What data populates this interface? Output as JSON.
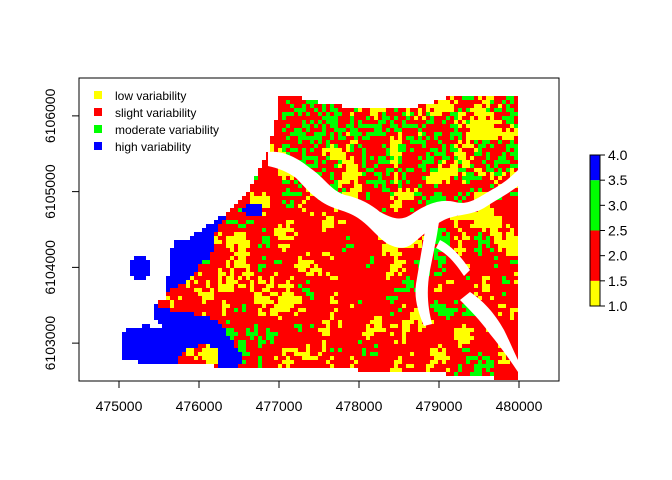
{
  "chart_data": {
    "type": "raster",
    "title": "",
    "xlabel": "",
    "ylabel": "",
    "xlim": [
      474500,
      480500
    ],
    "ylim": [
      6102500,
      6106500
    ],
    "x_ticks": [
      475000,
      476000,
      477000,
      478000,
      479000,
      480000
    ],
    "y_ticks": [
      6103000,
      6104000,
      6105000,
      6106000
    ],
    "x_tick_labels": [
      "475000",
      "476000",
      "477000",
      "478000",
      "479000",
      "480000"
    ],
    "y_tick_labels": [
      "6103000",
      "6104000",
      "6105000",
      "6106000"
    ],
    "legend": {
      "placement": "top-left",
      "entries": [
        {
          "label": "low variability",
          "color": "#ffff00"
        },
        {
          "label": "slight variability",
          "color": "#ff0000"
        },
        {
          "label": "moderate variability",
          "color": "#00ff00"
        },
        {
          "label": "high variability",
          "color": "#0000ff"
        }
      ]
    },
    "colorbar": {
      "range": [
        1.0,
        4.0
      ],
      "tick_labels": [
        "1.0",
        "1.5",
        "2.0",
        "2.5",
        "3.0",
        "3.5",
        "4.0"
      ],
      "classes": [
        {
          "from": 1.0,
          "to": 1.5,
          "color": "#ffff00"
        },
        {
          "from": 1.5,
          "to": 2.5,
          "color": "#ff0000"
        },
        {
          "from": 2.5,
          "to": 3.5,
          "color": "#00ff00"
        },
        {
          "from": 3.5,
          "to": 4.0,
          "color": "#0000ff"
        }
      ]
    },
    "classes": [
      {
        "value": 1,
        "name": "low variability",
        "color": "#ffff00"
      },
      {
        "value": 2,
        "name": "slight variability",
        "color": "#ff0000"
      },
      {
        "value": 3,
        "name": "moderate variability",
        "color": "#00ff00"
      },
      {
        "value": 4,
        "name": "high variability",
        "color": "#0000ff"
      }
    ],
    "grid": false
  }
}
